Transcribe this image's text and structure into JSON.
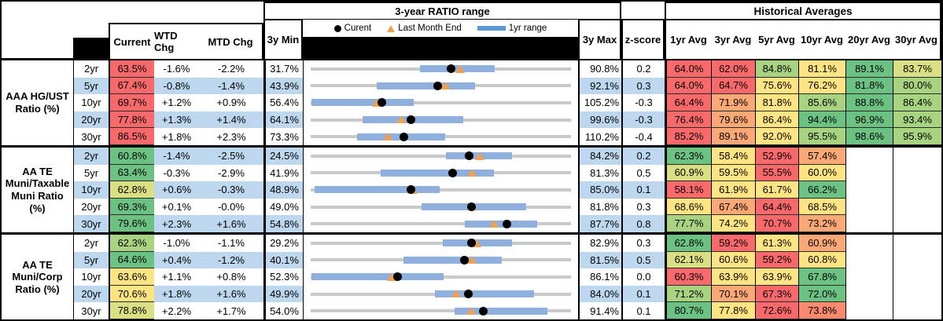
{
  "header": {
    "range_title": "3-year RATIO range",
    "historical_title": "Historical Averages",
    "current": "Current",
    "wtd": "WTD Chg",
    "mtd": "MTD Chg",
    "min": "3y Min",
    "max": "3y Max",
    "z": "z-score",
    "avg_cols": [
      "1yr Avg",
      "3yr Avg",
      "5yr Avg",
      "10yr Avg",
      "20yr Avg",
      "30yr Avg"
    ],
    "legend_current": "Curent",
    "legend_last_month": "Last Month End",
    "legend_range": "1yr range"
  },
  "palette": {
    "red": "#F8696B",
    "salmon": "#FA8A6E",
    "orange": "#FBA877",
    "yellow": "#FFE483",
    "yellowgreen": "#D9DF82",
    "lightgreen": "#A8D380",
    "green": "#6CC283",
    "stripe": "#BDD7EE",
    "track": "#C9C9C9",
    "bar": "#8FB0DF",
    "legend_bar": "#5B9BD5",
    "triangle": "#F0A14F"
  },
  "chart_data": {
    "type": "table",
    "title": "3-year RATIO range",
    "legend": [
      "Curent",
      "Last Month End",
      "1yr range"
    ],
    "groups": [
      {
        "label": "AAA HG/UST Ratio (%)",
        "rows": [
          {
            "tenor": "2yr",
            "current": 63.5,
            "current_color": "red",
            "wtd": "-1.6%",
            "mtd": "-2.2%",
            "min3y": 31.7,
            "max3y": 90.8,
            "z": "0.2",
            "last_month_end": 65.7,
            "range_1yr": [
              56.5,
              73.5
            ],
            "avgs": [
              [
                "64.0%",
                "red"
              ],
              [
                "62.0%",
                "red"
              ],
              [
                "84.8%",
                "lightgreen"
              ],
              [
                "81.1%",
                "yellow"
              ],
              [
                "89.1%",
                "green"
              ],
              [
                "83.7%",
                "yellowgreen"
              ]
            ]
          },
          {
            "tenor": "5yr",
            "current": 67.4,
            "current_color": "red",
            "wtd": "-0.8%",
            "mtd": "-1.4%",
            "min3y": 43.9,
            "max3y": 92.1,
            "z": "0.3",
            "last_month_end": 68.8,
            "range_1yr": [
              56.1,
              74.4
            ],
            "avgs": [
              [
                "64.0%",
                "red"
              ],
              [
                "64.7%",
                "red"
              ],
              [
                "75.6%",
                "yellow"
              ],
              [
                "76.2%",
                "yellow"
              ],
              [
                "81.8%",
                "green"
              ],
              [
                "80.0%",
                "lightgreen"
              ]
            ]
          },
          {
            "tenor": "10yr",
            "current": 69.7,
            "current_color": "red",
            "wtd": "+1.2%",
            "mtd": "+0.9%",
            "min3y": 56.4,
            "max3y": 105.2,
            "z": "-0.3",
            "last_month_end": 68.8,
            "range_1yr": [
              56.6,
              75.7
            ],
            "avgs": [
              [
                "64.4%",
                "red"
              ],
              [
                "71.9%",
                "orange"
              ],
              [
                "81.8%",
                "yellow"
              ],
              [
                "85.6%",
                "lightgreen"
              ],
              [
                "88.8%",
                "green"
              ],
              [
                "86.4%",
                "lightgreen"
              ]
            ]
          },
          {
            "tenor": "20yr",
            "current": 77.8,
            "current_color": "red",
            "wtd": "+1.3%",
            "mtd": "+1.4%",
            "min3y": 64.1,
            "max3y": 99.6,
            "z": "-0.3",
            "last_month_end": 76.4,
            "range_1yr": [
              71.2,
              84.9
            ],
            "avgs": [
              [
                "76.4%",
                "red"
              ],
              [
                "79.6%",
                "orange"
              ],
              [
                "86.4%",
                "yellow"
              ],
              [
                "94.4%",
                "green"
              ],
              [
                "96.9%",
                "green"
              ],
              [
                "93.4%",
                "lightgreen"
              ]
            ]
          },
          {
            "tenor": "30yr",
            "current": 86.5,
            "current_color": "red",
            "wtd": "+1.8%",
            "mtd": "+2.3%",
            "min3y": 73.3,
            "max3y": 110.2,
            "z": "-0.4",
            "last_month_end": 84.2,
            "range_1yr": [
              79.9,
              92.4
            ],
            "avgs": [
              [
                "85.2%",
                "red"
              ],
              [
                "89.1%",
                "orange"
              ],
              [
                "92.0%",
                "yellow"
              ],
              [
                "95.5%",
                "lightgreen"
              ],
              [
                "98.6%",
                "green"
              ],
              [
                "95.9%",
                "lightgreen"
              ]
            ]
          }
        ]
      },
      {
        "label": "AA TE Muni/Taxable Muni Ratio (%)",
        "rows": [
          {
            "tenor": "2yr",
            "current": 60.8,
            "current_color": "green",
            "wtd": "-1.4%",
            "mtd": "-2.5%",
            "min3y": 24.5,
            "max3y": 84.2,
            "z": "0.2",
            "last_month_end": 63.3,
            "range_1yr": [
              55.5,
              70.6
            ],
            "avgs": [
              [
                "62.3%",
                "green"
              ],
              [
                "58.4%",
                "yellow"
              ],
              [
                "52.9%",
                "red"
              ],
              [
                "57.4%",
                "orange"
              ],
              null,
              null
            ]
          },
          {
            "tenor": "5yr",
            "current": 63.4,
            "current_color": "green",
            "wtd": "-0.3%",
            "mtd": "-2.9%",
            "min3y": 41.9,
            "max3y": 81.3,
            "z": "0.5",
            "last_month_end": 66.3,
            "range_1yr": [
              52.5,
              69.6
            ],
            "avgs": [
              [
                "60.9%",
                "yellowgreen"
              ],
              [
                "59.5%",
                "yellow"
              ],
              [
                "55.5%",
                "red"
              ],
              [
                "60.0%",
                "yellow"
              ],
              null,
              null
            ]
          },
          {
            "tenor": "10yr",
            "current": 62.8,
            "current_color": "yellowgreen",
            "wtd": "+0.6%",
            "mtd": "-0.3%",
            "min3y": 48.9,
            "max3y": 85.0,
            "z": "0.1",
            "last_month_end": 63.1,
            "range_1yr": [
              49.4,
              66.8
            ],
            "avgs": [
              [
                "58.1%",
                "red"
              ],
              [
                "61.9%",
                "yellow"
              ],
              [
                "61.7%",
                "yellow"
              ],
              [
                "66.2%",
                "green"
              ],
              null,
              null
            ]
          },
          {
            "tenor": "20yr",
            "current": 69.3,
            "current_color": "green",
            "wtd": "+0.1%",
            "mtd": "-0.0%",
            "min3y": 49.0,
            "max3y": 81.8,
            "z": "0.3",
            "last_month_end": 69.3,
            "range_1yr": [
              63.0,
              76.2
            ],
            "avgs": [
              [
                "68.6%",
                "yellow"
              ],
              [
                "67.4%",
                "orange"
              ],
              [
                "64.4%",
                "red"
              ],
              [
                "68.5%",
                "yellow"
              ],
              null,
              null
            ]
          },
          {
            "tenor": "30yr",
            "current": 79.6,
            "current_color": "green",
            "wtd": "+2.3%",
            "mtd": "+1.6%",
            "min3y": 54.8,
            "max3y": 87.7,
            "z": "0.8",
            "last_month_end": 78.0,
            "range_1yr": [
              74.3,
              83.4
            ],
            "avgs": [
              [
                "77.7%",
                "lightgreen"
              ],
              [
                "74.2%",
                "yellow"
              ],
              [
                "70.7%",
                "red"
              ],
              [
                "73.2%",
                "orange"
              ],
              null,
              null
            ]
          }
        ]
      },
      {
        "label": "AA TE Muni/Corp Ratio (%)",
        "rows": [
          {
            "tenor": "2yr",
            "current": 62.3,
            "current_color": "lightgreen",
            "wtd": "-1.0%",
            "mtd": "-1.1%",
            "min3y": 29.2,
            "max3y": 82.9,
            "z": "0.3",
            "last_month_end": 63.4,
            "range_1yr": [
              56.5,
              70.7
            ],
            "avgs": [
              [
                "62.8%",
                "green"
              ],
              [
                "59.2%",
                "red"
              ],
              [
                "61.3%",
                "yellow"
              ],
              [
                "60.9%",
                "orange"
              ],
              null,
              null
            ]
          },
          {
            "tenor": "5yr",
            "current": 64.6,
            "current_color": "green",
            "wtd": "+0.4%",
            "mtd": "-1.2%",
            "min3y": 40.1,
            "max3y": 81.5,
            "z": "0.5",
            "last_month_end": 65.8,
            "range_1yr": [
              54.8,
              70.5
            ],
            "avgs": [
              [
                "62.1%",
                "yellowgreen"
              ],
              [
                "60.6%",
                "yellow"
              ],
              [
                "59.2%",
                "red"
              ],
              [
                "60.8%",
                "yellow"
              ],
              null,
              null
            ]
          },
          {
            "tenor": "10yr",
            "current": 63.6,
            "current_color": "yellow",
            "wtd": "+1.1%",
            "mtd": "+0.8%",
            "min3y": 52.3,
            "max3y": 86.1,
            "z": "0.0",
            "last_month_end": 62.8,
            "range_1yr": [
              52.4,
              69.6
            ],
            "avgs": [
              [
                "60.3%",
                "red"
              ],
              [
                "63.9%",
                "yellow"
              ],
              [
                "63.9%",
                "yellow"
              ],
              [
                "67.8%",
                "green"
              ],
              null,
              null
            ]
          },
          {
            "tenor": "20yr",
            "current": 70.6,
            "current_color": "yellow",
            "wtd": "+1.8%",
            "mtd": "+1.6%",
            "min3y": 49.9,
            "max3y": 84.0,
            "z": "0.1",
            "last_month_end": 69.0,
            "range_1yr": [
              66.2,
              79.2
            ],
            "avgs": [
              [
                "71.2%",
                "lightgreen"
              ],
              [
                "70.1%",
                "orange"
              ],
              [
                "67.3%",
                "red"
              ],
              [
                "72.0%",
                "green"
              ],
              null,
              null
            ]
          },
          {
            "tenor": "30yr",
            "current": 78.8,
            "current_color": "yellowgreen",
            "wtd": "+2.2%",
            "mtd": "+1.7%",
            "min3y": 54.0,
            "max3y": 91.4,
            "z": "0.1",
            "last_month_end": 77.1,
            "range_1yr": [
              74.7,
              88.0
            ],
            "avgs": [
              [
                "80.7%",
                "green"
              ],
              [
                "77.8%",
                "yellow"
              ],
              [
                "72.6%",
                "red"
              ],
              [
                "73.8%",
                "salmon"
              ],
              null,
              null
            ]
          }
        ]
      }
    ]
  }
}
